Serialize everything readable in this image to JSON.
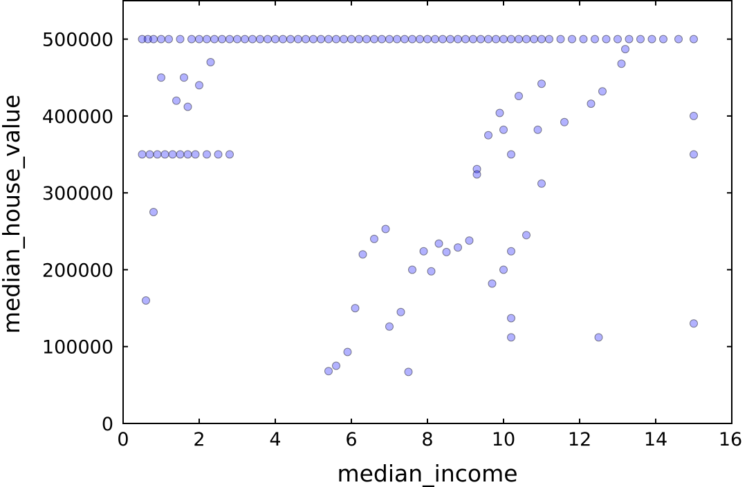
{
  "chart_data": {
    "type": "scatter",
    "title": "",
    "xlabel": "median_income",
    "ylabel": "median_house_value",
    "xlim": [
      0,
      16
    ],
    "ylim": [
      0,
      550000
    ],
    "xticks": [
      0,
      2,
      4,
      6,
      8,
      10,
      12,
      14,
      16
    ],
    "yticks": [
      0,
      100000,
      200000,
      300000,
      400000,
      500000
    ],
    "xtick_labels": [
      "0",
      "2",
      "4",
      "6",
      "8",
      "10",
      "12",
      "14",
      "16"
    ],
    "ytick_labels": [
      "0",
      "100000",
      "200000",
      "300000",
      "400000",
      "500000"
    ],
    "grid": false,
    "legend": "none",
    "marker_color": "#0000ff",
    "marker_edge_color": "#000000",
    "marker_alpha": 0.3,
    "series": [
      {
        "points": [
          [
            0.5,
            500000
          ],
          [
            0.65,
            500000
          ],
          [
            0.8,
            500000
          ],
          [
            1.0,
            500000
          ],
          [
            1.2,
            500000
          ],
          [
            1.5,
            500000
          ],
          [
            1.8,
            500000
          ],
          [
            2.0,
            500000
          ],
          [
            2.2,
            500000
          ],
          [
            2.4,
            500000
          ],
          [
            2.6,
            500000
          ],
          [
            2.8,
            500000
          ],
          [
            3.0,
            500000
          ],
          [
            3.2,
            500000
          ],
          [
            3.4,
            500000
          ],
          [
            3.6,
            500000
          ],
          [
            3.8,
            500000
          ],
          [
            4.0,
            500000
          ],
          [
            4.2,
            500000
          ],
          [
            4.4,
            500000
          ],
          [
            4.6,
            500000
          ],
          [
            4.8,
            500000
          ],
          [
            5.0,
            500000
          ],
          [
            5.2,
            500000
          ],
          [
            5.4,
            500000
          ],
          [
            5.6,
            500000
          ],
          [
            5.8,
            500000
          ],
          [
            6.0,
            500000
          ],
          [
            6.2,
            500000
          ],
          [
            6.4,
            500000
          ],
          [
            6.6,
            500000
          ],
          [
            6.8,
            500000
          ],
          [
            7.0,
            500000
          ],
          [
            7.2,
            500000
          ],
          [
            7.4,
            500000
          ],
          [
            7.6,
            500000
          ],
          [
            7.8,
            500000
          ],
          [
            8.0,
            500000
          ],
          [
            8.2,
            500000
          ],
          [
            8.4,
            500000
          ],
          [
            8.6,
            500000
          ],
          [
            8.8,
            500000
          ],
          [
            9.0,
            500000
          ],
          [
            9.2,
            500000
          ],
          [
            9.4,
            500000
          ],
          [
            9.6,
            500000
          ],
          [
            9.8,
            500000
          ],
          [
            10.0,
            500000
          ],
          [
            10.2,
            500000
          ],
          [
            10.4,
            500000
          ],
          [
            10.6,
            500000
          ],
          [
            10.8,
            500000
          ],
          [
            11.0,
            500000
          ],
          [
            11.2,
            500000
          ],
          [
            11.5,
            500000
          ],
          [
            11.8,
            500000
          ],
          [
            12.1,
            500000
          ],
          [
            12.4,
            500000
          ],
          [
            12.7,
            500000
          ],
          [
            13.0,
            500000
          ],
          [
            13.3,
            500000
          ],
          [
            13.6,
            500000
          ],
          [
            13.9,
            500000
          ],
          [
            14.2,
            500000
          ],
          [
            14.6,
            500000
          ],
          [
            15.0,
            500000
          ],
          [
            0.5,
            350000
          ],
          [
            0.7,
            350000
          ],
          [
            0.9,
            350000
          ],
          [
            1.1,
            350000
          ],
          [
            1.3,
            350000
          ],
          [
            1.5,
            350000
          ],
          [
            1.7,
            350000
          ],
          [
            1.9,
            350000
          ],
          [
            2.2,
            350000
          ],
          [
            2.5,
            350000
          ],
          [
            2.8,
            350000
          ],
          [
            1.0,
            450000
          ],
          [
            1.6,
            450000
          ],
          [
            0.8,
            275000
          ],
          [
            0.6,
            160000
          ],
          [
            1.4,
            420000
          ],
          [
            1.7,
            412000
          ],
          [
            2.0,
            440000
          ],
          [
            2.3,
            470000
          ],
          [
            15.0,
            400000
          ],
          [
            15.0,
            350000
          ],
          [
            15.0,
            130000
          ],
          [
            13.1,
            468000
          ],
          [
            13.2,
            487000
          ],
          [
            12.6,
            432000
          ],
          [
            12.3,
            416000
          ],
          [
            11.6,
            392000
          ],
          [
            11.0,
            442000
          ],
          [
            11.0,
            312000
          ],
          [
            10.9,
            382000
          ],
          [
            10.4,
            426000
          ],
          [
            10.2,
            350000
          ],
          [
            10.2,
            224000
          ],
          [
            10.2,
            137000
          ],
          [
            10.2,
            112000
          ],
          [
            10.0,
            200000
          ],
          [
            9.7,
            182000
          ],
          [
            9.9,
            404000
          ],
          [
            10.0,
            382000
          ],
          [
            10.6,
            245000
          ],
          [
            12.5,
            112000
          ],
          [
            9.6,
            375000
          ],
          [
            9.3,
            331000
          ],
          [
            9.3,
            324000
          ],
          [
            9.1,
            238000
          ],
          [
            8.8,
            229000
          ],
          [
            8.5,
            223000
          ],
          [
            8.3,
            234000
          ],
          [
            8.1,
            198000
          ],
          [
            7.9,
            224000
          ],
          [
            7.6,
            200000
          ],
          [
            7.5,
            67000
          ],
          [
            7.3,
            145000
          ],
          [
            7.0,
            126000
          ],
          [
            6.9,
            253000
          ],
          [
            6.6,
            240000
          ],
          [
            6.3,
            220000
          ],
          [
            6.1,
            150000
          ],
          [
            5.9,
            93000
          ],
          [
            5.6,
            75000
          ],
          [
            5.4,
            68000
          ]
        ]
      }
    ]
  }
}
